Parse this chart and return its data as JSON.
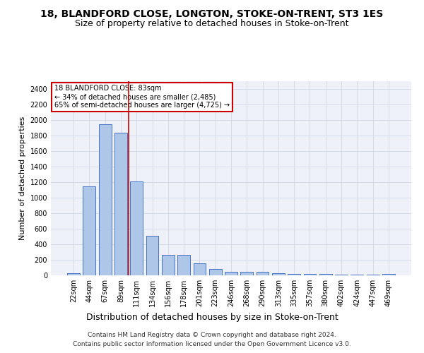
{
  "title1": "18, BLANDFORD CLOSE, LONGTON, STOKE-ON-TRENT, ST3 1ES",
  "title2": "Size of property relative to detached houses in Stoke-on-Trent",
  "xlabel": "Distribution of detached houses by size in Stoke-on-Trent",
  "ylabel": "Number of detached properties",
  "footer1": "Contains HM Land Registry data © Crown copyright and database right 2024.",
  "footer2": "Contains public sector information licensed under the Open Government Licence v3.0.",
  "annotation_line1": "18 BLANDFORD CLOSE: 83sqm",
  "annotation_line2": "← 34% of detached houses are smaller (2,485)",
  "annotation_line3": "65% of semi-detached houses are larger (4,725) →",
  "bar_labels": [
    "22sqm",
    "44sqm",
    "67sqm",
    "89sqm",
    "111sqm",
    "134sqm",
    "156sqm",
    "178sqm",
    "201sqm",
    "223sqm",
    "246sqm",
    "268sqm",
    "290sqm",
    "313sqm",
    "335sqm",
    "357sqm",
    "380sqm",
    "402sqm",
    "424sqm",
    "447sqm",
    "469sqm"
  ],
  "bar_values": [
    30,
    1150,
    1950,
    1840,
    1210,
    510,
    265,
    265,
    155,
    80,
    50,
    45,
    45,
    25,
    20,
    15,
    20,
    5,
    5,
    5,
    20
  ],
  "bar_color": "#aec6e8",
  "bar_edge_color": "#4472c4",
  "bar_width": 0.8,
  "vline_color": "#cc0000",
  "vline_x": 3.5,
  "ylim": [
    0,
    2500
  ],
  "yticks": [
    0,
    200,
    400,
    600,
    800,
    1000,
    1200,
    1400,
    1600,
    1800,
    2000,
    2200,
    2400
  ],
  "grid_color": "#d0d8e8",
  "bg_color": "#eef2f8",
  "annotation_box_color": "#cc0000",
  "title1_fontsize": 10,
  "title2_fontsize": 9,
  "xlabel_fontsize": 9,
  "ylabel_fontsize": 8,
  "tick_fontsize": 7,
  "annotation_fontsize": 7,
  "footer_fontsize": 6.5
}
